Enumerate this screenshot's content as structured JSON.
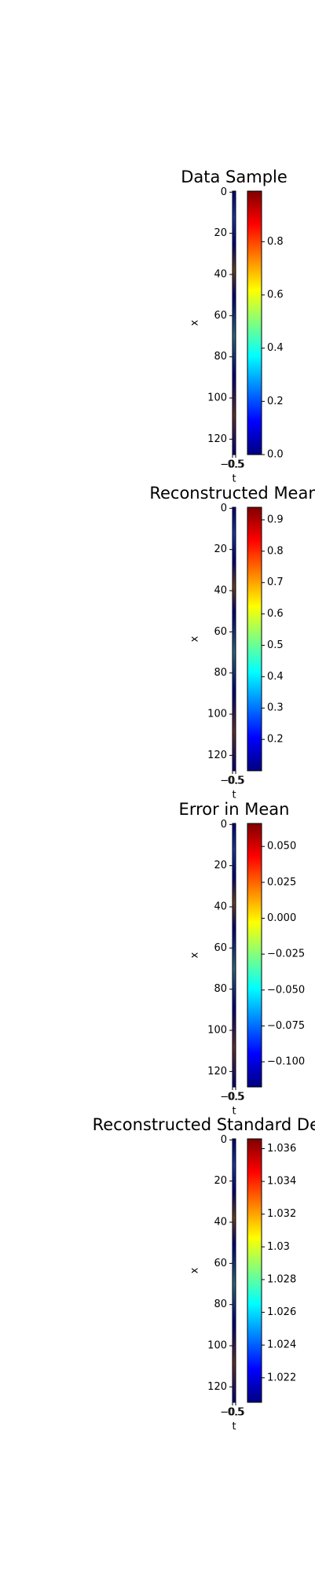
{
  "chart_data": [
    {
      "type": "heatmap",
      "title": "Data Sample",
      "xlabel": "t",
      "ylabel": "x",
      "xlim": [
        -0.5,
        0.5
      ],
      "xticks": [
        {
          "value": -0.5,
          "label": "−0.5"
        },
        0.5
      ],
      "ylim": [
        127.5,
        -0.5
      ],
      "yticks": [
        0,
        20,
        40,
        60,
        80,
        100,
        120
      ],
      "colormap": "jet",
      "clim": [
        0,
        0.99
      ],
      "cticks": [
        {
          "value": 0,
          "label": "0.0"
        },
        0.2,
        0.4,
        0.6,
        0.8
      ]
    },
    {
      "type": "heatmap",
      "title": "Reconstructed Mean",
      "xlabel": "t",
      "ylabel": "x",
      "xlim": [
        -0.5,
        0.5
      ],
      "xticks": [
        {
          "value": -0.5,
          "label": "−0.5"
        },
        0.5
      ],
      "ylim": [
        127.5,
        -0.5
      ],
      "yticks": [
        0,
        20,
        40,
        60,
        80,
        100,
        120
      ],
      "colormap": "jet",
      "clim": [
        0.1,
        0.94
      ],
      "cticks": [
        0.2,
        0.3,
        0.4,
        0.5,
        0.6,
        0.7,
        0.8,
        0.9
      ]
    },
    {
      "type": "heatmap",
      "title": "Error in Mean",
      "xlabel": "t",
      "ylabel": "x",
      "xlim": [
        -0.5,
        0.5
      ],
      "xticks": [
        {
          "value": -0.5,
          "label": "−0.5"
        },
        0.5
      ],
      "ylim": [
        127.5,
        -0.5
      ],
      "yticks": [
        0,
        20,
        40,
        60,
        80,
        100,
        120
      ],
      "colormap": "jet",
      "clim": [
        -0.1175,
        0.066
      ],
      "cticks": [
        {
          "value": -0.1,
          "label": "−0.100"
        },
        {
          "value": -0.075,
          "label": "−0.075"
        },
        {
          "value": -0.05,
          "label": "−0.050"
        },
        {
          "value": -0.025,
          "label": "−0.025"
        },
        {
          "value": 0,
          "label": "0.000"
        },
        {
          "value": 0.025,
          "label": "0.025"
        },
        {
          "value": 0.05,
          "label": "0.050"
        }
      ]
    },
    {
      "type": "heatmap",
      "title": "Reconstructed Standard Deviation",
      "xlabel": "t",
      "ylabel": "x",
      "xlim": [
        -0.5,
        0.5
      ],
      "xticks": [
        {
          "value": -0.5,
          "label": "−0.5"
        },
        0.5
      ],
      "ylim": [
        127.5,
        -0.5
      ],
      "yticks": [
        0,
        20,
        40,
        60,
        80,
        100,
        120
      ],
      "colormap": "jet",
      "clim": [
        1.0205,
        1.0366
      ],
      "cticks": [
        1.022,
        1.024,
        1.026,
        1.028,
        1.03,
        1.032,
        1.034,
        1.036
      ]
    }
  ]
}
